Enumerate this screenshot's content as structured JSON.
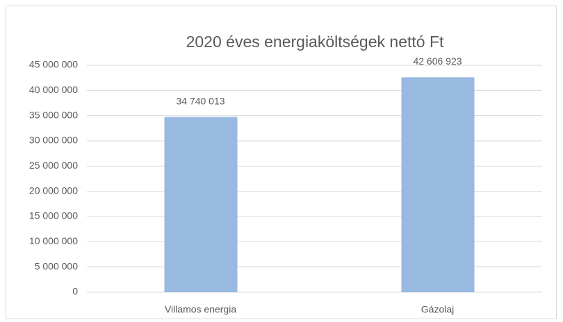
{
  "chart_data": {
    "type": "bar",
    "title": "2020 éves energiaköltségek  nettó Ft",
    "categories": [
      "Villamos energia",
      "Gázolaj"
    ],
    "values": [
      34740013,
      42606923
    ],
    "value_labels": [
      "34 740 013",
      "42 606 923"
    ],
    "color": "#98b9e0",
    "ylim": [
      0,
      45000000
    ],
    "yticks": [
      0,
      {
        "value": 5000000,
        "label": "5 000 000"
      },
      {
        "value": 10000000,
        "label": "10 000 000"
      },
      {
        "value": 15000000,
        "label": "15 000 000"
      },
      {
        "value": 20000000,
        "label": "20 000 000"
      },
      {
        "value": 25000000,
        "label": "25 000 000"
      },
      {
        "value": 30000000,
        "label": "30 000 000"
      },
      {
        "value": 35000000,
        "label": "35 000 000"
      },
      {
        "value": 40000000,
        "label": "40 000 000"
      },
      {
        "value": 45000000,
        "label": "45 000 000"
      }
    ],
    "grid": true
  }
}
